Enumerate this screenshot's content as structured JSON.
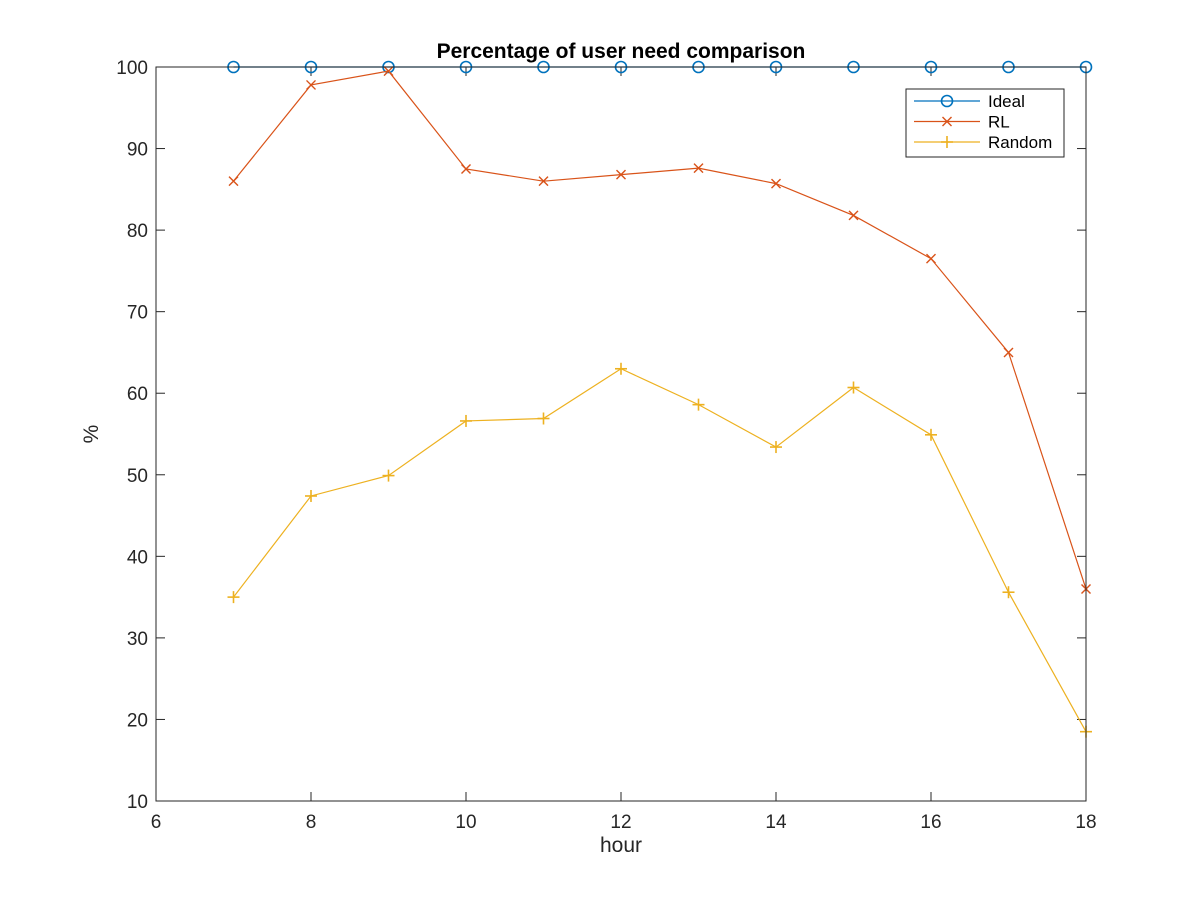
{
  "chart_data": {
    "type": "line",
    "title": "Percentage of user need comparison",
    "xlabel": "hour",
    "ylabel": "%",
    "xlim": [
      6,
      18
    ],
    "ylim": [
      10,
      100
    ],
    "xticks": [
      6,
      8,
      10,
      12,
      14,
      16,
      18
    ],
    "yticks": [
      10,
      20,
      30,
      40,
      50,
      60,
      70,
      80,
      90,
      100
    ],
    "grid": false,
    "legend_position": "top-right",
    "x": [
      7,
      8,
      9,
      10,
      11,
      12,
      13,
      14,
      15,
      16,
      17,
      18
    ],
    "series": [
      {
        "name": "Ideal",
        "color": "#0072BD",
        "marker": "circle",
        "values": [
          100,
          100,
          100,
          100,
          100,
          100,
          100,
          100,
          100,
          100,
          100,
          100
        ]
      },
      {
        "name": "RL",
        "color": "#D95319",
        "marker": "x",
        "values": [
          86,
          97.8,
          99.5,
          87.5,
          86,
          86.8,
          87.6,
          85.7,
          81.8,
          76.5,
          65,
          36
        ]
      },
      {
        "name": "Random",
        "color": "#EDB120",
        "marker": "plus",
        "values": [
          35,
          47.4,
          49.9,
          56.6,
          56.9,
          63,
          58.6,
          53.4,
          60.7,
          54.9,
          35.6,
          18.5
        ]
      }
    ]
  }
}
